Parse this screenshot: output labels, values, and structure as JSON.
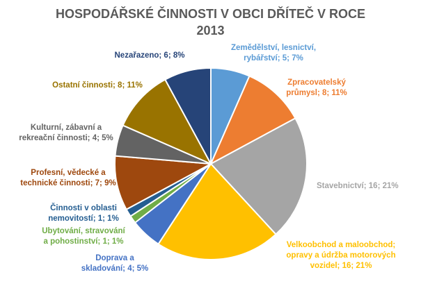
{
  "chart_data": {
    "type": "pie",
    "title_lines": [
      "HOSPODÁŘSKÉ ČINNOSTI V OBCI DŘÍTEČ V ROCE",
      "2013"
    ],
    "slices": [
      {
        "label": "Zemědělství, lesnictví,\nrybářství; 5; 7%",
        "value": 5,
        "percent": "7%",
        "color": "#5B9BD5"
      },
      {
        "label": "Zpracovatelský\nprůmysl; 8; 11%",
        "value": 8,
        "percent": "11%",
        "color": "#ED7D31"
      },
      {
        "label": "Stavebnictví; 16; 21%",
        "value": 16,
        "percent": "21%",
        "color": "#A5A5A5"
      },
      {
        "label": "Velkoobchod a maloobchod;\nopravy a údržba motorových\nvozidel; 16; 21%",
        "value": 16,
        "percent": "21%",
        "color": "#FFC000"
      },
      {
        "label": "Doprava a\nskladování; 4; 5%",
        "value": 4,
        "percent": "5%",
        "color": "#4472C4"
      },
      {
        "label": "Ubytování, stravování\na pohostinství; 1; 1%",
        "value": 1,
        "percent": "1%",
        "color": "#70AD47"
      },
      {
        "label": "Činnosti v oblasti\nnemovitostí; 1; 1%",
        "value": 1,
        "percent": "1%",
        "color": "#255E91"
      },
      {
        "label": "Profesní, vědecké a\ntechnické činnosti; 7; 9%",
        "value": 7,
        "percent": "9%",
        "color": "#9E480E"
      },
      {
        "label": "Kulturní, zábavní a\nrekreační činnosti; 4; 5%",
        "value": 4,
        "percent": "5%",
        "color": "#636363"
      },
      {
        "label": "Ostatní činnosti; 8; 11%",
        "value": 8,
        "percent": "11%",
        "color": "#997300"
      },
      {
        "label": "Nezařazeno; 6; 8%",
        "value": 6,
        "percent": "8%",
        "color": "#264478"
      }
    ],
    "legend": "none",
    "grid": false
  }
}
